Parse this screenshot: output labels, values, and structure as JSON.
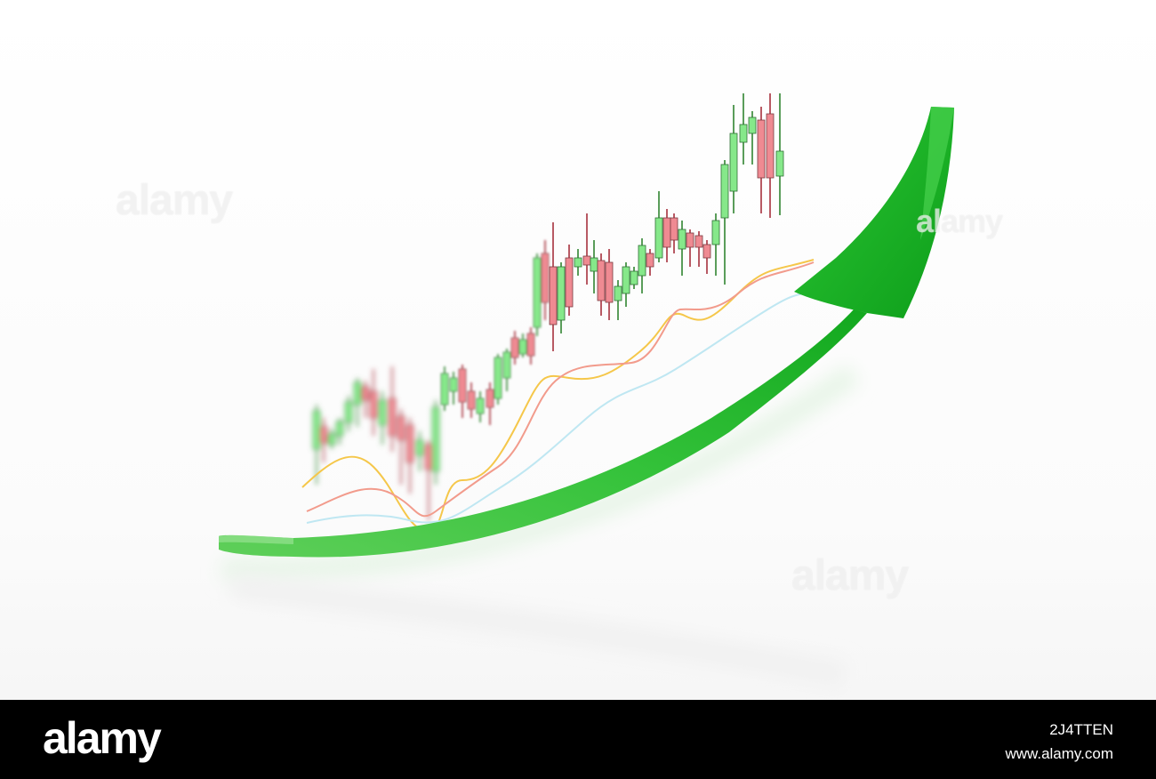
{
  "watermark": {
    "text": "alamy"
  },
  "footer": {
    "brand": "alamy",
    "image_id": "2J4TTEN",
    "site": "www.alamy.com"
  },
  "colors": {
    "arrow": "#1fb82a",
    "candle_up": "#86e88a",
    "candle_down": "#ef8a92",
    "wick": "#5a9d5a",
    "ma_fast": "#f5c74a",
    "ma_mid": "#f29b8c",
    "ma_slow": "#bfe7f2"
  },
  "icons": {
    "main": "trend-up-arrow-icon"
  }
}
